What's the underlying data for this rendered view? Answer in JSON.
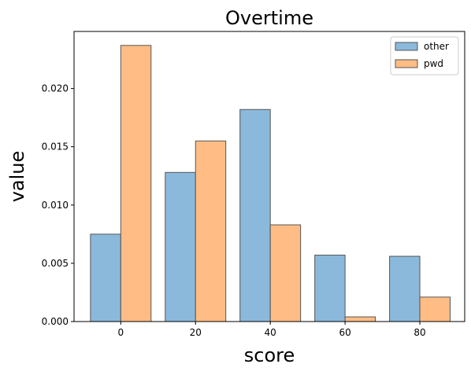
{
  "chart_data": {
    "type": "bar",
    "title": "Overtime",
    "xlabel": "score",
    "ylabel": "value",
    "categories": [
      0,
      20,
      40,
      60,
      80
    ],
    "xlim": [
      -12.5,
      92
    ],
    "ylim": [
      0,
      0.0249
    ],
    "x_ticks": [
      "0",
      "20",
      "40",
      "60",
      "80"
    ],
    "y_ticks": [
      "0.000",
      "0.005",
      "0.010",
      "0.015",
      "0.020"
    ],
    "legend_position": "upper right",
    "grid": false,
    "series": [
      {
        "name": "other",
        "values": [
          0.0075,
          0.0128,
          0.0182,
          0.0057,
          0.0056
        ],
        "color": "#8bb9db"
      },
      {
        "name": "pwd",
        "values": [
          0.0237,
          0.0155,
          0.0083,
          0.0004,
          0.0021
        ],
        "color": "#ffbd85"
      }
    ]
  }
}
